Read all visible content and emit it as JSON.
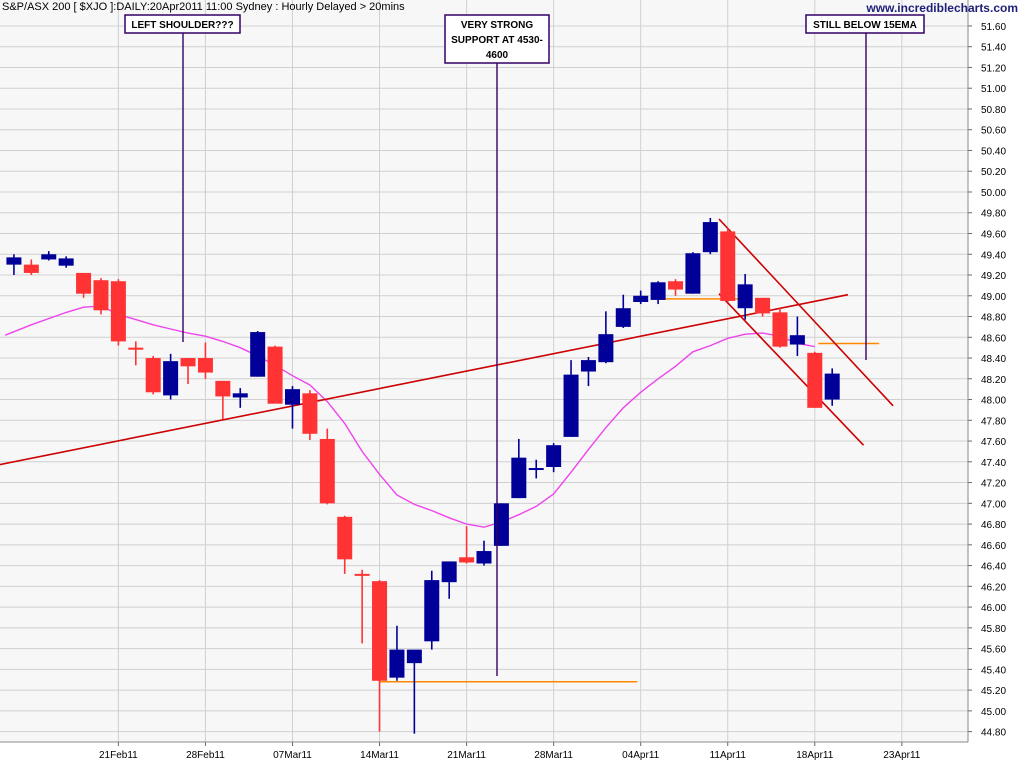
{
  "header": {
    "title": "S&P/ASX 200 [ $XJO ]:DAILY:20Apr2011 11:00 Sydney : Hourly Delayed > 20mins",
    "site": "www.incrediblecharts.com"
  },
  "colors": {
    "up": "#000099",
    "down": "#ff3333",
    "ema": "#ee44ee",
    "trend": "#cc0000",
    "support": "#ff8800",
    "annotation_border": "#330066",
    "grid": "#d0d0d0",
    "plot_bg": "#f7f7f7",
    "axis_bg": "#ffffff"
  },
  "annotations": [
    {
      "id": "left-shoulder",
      "text": [
        "LEFT SHOULDER???"
      ]
    },
    {
      "id": "strong-support",
      "text": [
        "VERY STRONG",
        "SUPPORT AT 4530-",
        "4600"
      ]
    },
    {
      "id": "below-ema",
      "text": [
        "STILL BELOW 15EMA"
      ]
    }
  ],
  "chart_data": {
    "type": "candlestick",
    "title": "S&P/ASX 200 [ $XJO ]:DAILY:20Apr2011 11:00 Sydney : Hourly Delayed > 20mins",
    "xlabel": "",
    "ylabel": "",
    "ylim": [
      44.7,
      51.85
    ],
    "y_ticks": [
      "51.60",
      "51.40",
      "51.20",
      "51.00",
      "50.80",
      "50.60",
      "50.40",
      "50.20",
      "50.00",
      "49.80",
      "49.60",
      "49.40",
      "49.20",
      "49.00",
      "48.80",
      "48.60",
      "48.40",
      "48.20",
      "48.00",
      "47.80",
      "47.60",
      "47.40",
      "47.20",
      "47.00",
      "46.80",
      "46.60",
      "46.40",
      "46.20",
      "46.00",
      "45.80",
      "45.60",
      "45.40",
      "45.20",
      "45.00",
      "44.80"
    ],
    "x_ticks": [
      {
        "label": "21Feb11",
        "index": 8
      },
      {
        "label": "28Feb11",
        "index": 13
      },
      {
        "label": "07Mar11",
        "index": 18
      },
      {
        "label": "14Mar11",
        "index": 23
      },
      {
        "label": "21Mar11",
        "index": 28
      },
      {
        "label": "28Mar11",
        "index": 33
      },
      {
        "label": "04Apr11",
        "index": 38
      },
      {
        "label": "11Apr11",
        "index": 43
      },
      {
        "label": "18Apr11",
        "index": 48
      },
      {
        "label": "23Apr11",
        "index": 53
      }
    ],
    "index_range": [
      1.2,
      56.8
    ],
    "grid": true,
    "candles": [
      {
        "i": 2,
        "o": 49.3,
        "h": 49.4,
        "l": 49.2,
        "c": 49.37
      },
      {
        "i": 3,
        "o": 49.3,
        "h": 49.35,
        "l": 49.2,
        "c": 49.22
      },
      {
        "i": 4,
        "o": 49.35,
        "h": 49.43,
        "l": 49.34,
        "c": 49.4
      },
      {
        "i": 5,
        "o": 49.29,
        "h": 49.38,
        "l": 49.27,
        "c": 49.36
      },
      {
        "i": 6,
        "o": 49.22,
        "h": 49.22,
        "l": 48.98,
        "c": 49.02
      },
      {
        "i": 7,
        "o": 49.15,
        "h": 49.17,
        "l": 48.82,
        "c": 48.86
      },
      {
        "i": 8,
        "o": 49.14,
        "h": 49.16,
        "l": 48.52,
        "c": 48.56
      },
      {
        "i": 9,
        "o": 48.5,
        "h": 48.56,
        "l": 48.33,
        "c": 48.48
      },
      {
        "i": 10,
        "o": 48.4,
        "h": 48.42,
        "l": 48.05,
        "c": 48.07
      },
      {
        "i": 11,
        "o": 48.04,
        "h": 48.44,
        "l": 48.0,
        "c": 48.37
      },
      {
        "i": 12,
        "o": 48.4,
        "h": 48.4,
        "l": 48.15,
        "c": 48.32
      },
      {
        "i": 13,
        "o": 48.4,
        "h": 48.55,
        "l": 48.2,
        "c": 48.26
      },
      {
        "i": 14,
        "o": 48.18,
        "h": 48.18,
        "l": 47.81,
        "c": 48.03
      },
      {
        "i": 15,
        "o": 48.02,
        "h": 48.11,
        "l": 47.92,
        "c": 48.06
      },
      {
        "i": 16,
        "o": 48.22,
        "h": 48.66,
        "l": 48.22,
        "c": 48.65
      },
      {
        "i": 17,
        "o": 48.51,
        "h": 48.52,
        "l": 47.97,
        "c": 47.96
      },
      {
        "i": 18,
        "o": 47.95,
        "h": 48.13,
        "l": 47.72,
        "c": 48.1
      },
      {
        "i": 19,
        "o": 48.06,
        "h": 48.09,
        "l": 47.61,
        "c": 47.67
      },
      {
        "i": 20,
        "o": 47.62,
        "h": 47.72,
        "l": 46.99,
        "c": 47.0
      },
      {
        "i": 21,
        "o": 46.87,
        "h": 46.88,
        "l": 46.32,
        "c": 46.46
      },
      {
        "i": 22,
        "o": 46.32,
        "h": 46.36,
        "l": 45.65,
        "c": 46.31
      },
      {
        "i": 23,
        "o": 46.25,
        "h": 46.26,
        "l": 44.8,
        "c": 45.29
      },
      {
        "i": 24,
        "o": 45.32,
        "h": 45.82,
        "l": 45.29,
        "c": 45.59
      },
      {
        "i": 25,
        "o": 45.46,
        "h": 45.58,
        "l": 44.78,
        "c": 45.59
      },
      {
        "i": 26,
        "o": 45.67,
        "h": 46.35,
        "l": 45.59,
        "c": 46.26
      },
      {
        "i": 27,
        "o": 46.24,
        "h": 46.44,
        "l": 46.08,
        "c": 46.44
      },
      {
        "i": 28,
        "o": 46.48,
        "h": 46.78,
        "l": 46.42,
        "c": 46.43
      },
      {
        "i": 29,
        "o": 46.42,
        "h": 46.64,
        "l": 46.4,
        "c": 46.54
      },
      {
        "i": 30,
        "o": 46.59,
        "h": 47.0,
        "l": 46.59,
        "c": 47.0
      },
      {
        "i": 31,
        "o": 47.05,
        "h": 47.62,
        "l": 47.05,
        "c": 47.44
      },
      {
        "i": 32,
        "o": 47.34,
        "h": 47.42,
        "l": 47.24,
        "c": 47.34
      },
      {
        "i": 33,
        "o": 47.35,
        "h": 47.58,
        "l": 47.3,
        "c": 47.56
      },
      {
        "i": 34,
        "o": 47.64,
        "h": 48.38,
        "l": 47.64,
        "c": 48.24
      },
      {
        "i": 35,
        "o": 48.27,
        "h": 48.41,
        "l": 48.13,
        "c": 48.38
      },
      {
        "i": 36,
        "o": 48.36,
        "h": 48.85,
        "l": 48.35,
        "c": 48.63
      },
      {
        "i": 37,
        "o": 48.7,
        "h": 49.01,
        "l": 48.69,
        "c": 48.88
      },
      {
        "i": 38,
        "o": 48.94,
        "h": 49.05,
        "l": 48.92,
        "c": 49.0
      },
      {
        "i": 39,
        "o": 48.96,
        "h": 49.14,
        "l": 48.92,
        "c": 49.13
      },
      {
        "i": 40,
        "o": 49.14,
        "h": 49.16,
        "l": 49.0,
        "c": 49.06
      },
      {
        "i": 41,
        "o": 49.02,
        "h": 49.42,
        "l": 49.02,
        "c": 49.41
      },
      {
        "i": 42,
        "o": 49.42,
        "h": 49.75,
        "l": 49.4,
        "c": 49.71
      },
      {
        "i": 43,
        "o": 49.62,
        "h": 49.65,
        "l": 48.94,
        "c": 48.95
      },
      {
        "i": 44,
        "o": 48.88,
        "h": 49.21,
        "l": 48.77,
        "c": 49.11
      },
      {
        "i": 45,
        "o": 48.98,
        "h": 48.98,
        "l": 48.8,
        "c": 48.83
      },
      {
        "i": 46,
        "o": 48.84,
        "h": 48.88,
        "l": 48.5,
        "c": 48.51
      },
      {
        "i": 47,
        "o": 48.53,
        "h": 48.8,
        "l": 48.42,
        "c": 48.62
      },
      {
        "i": 48,
        "o": 48.45,
        "h": 48.46,
        "l": 47.92,
        "c": 47.92
      },
      {
        "i": 49,
        "o": 48.0,
        "h": 48.3,
        "l": 47.94,
        "c": 48.25
      }
    ],
    "series": [
      {
        "type": "line",
        "points": [
          [
            1.5,
            48.62
          ],
          [
            3,
            48.72
          ],
          [
            5,
            48.84
          ],
          [
            6,
            48.89
          ],
          [
            7,
            48.9
          ],
          [
            8,
            48.82
          ],
          [
            9,
            48.77
          ],
          [
            10,
            48.72
          ],
          [
            11,
            48.68
          ],
          [
            12,
            48.64
          ],
          [
            13,
            48.61
          ],
          [
            14,
            48.56
          ],
          [
            15,
            48.5
          ],
          [
            16,
            48.42
          ],
          [
            17,
            48.33
          ],
          [
            18,
            48.23
          ],
          [
            19,
            48.14
          ],
          [
            20,
            47.98
          ],
          [
            21,
            47.77
          ],
          [
            22,
            47.5
          ],
          [
            23,
            47.28
          ],
          [
            24,
            47.08
          ],
          [
            25,
            46.99
          ],
          [
            26,
            46.93
          ],
          [
            27,
            46.86
          ],
          [
            28,
            46.8
          ],
          [
            29,
            46.77
          ],
          [
            30,
            46.82
          ],
          [
            31,
            46.89
          ],
          [
            32,
            46.97
          ],
          [
            33,
            47.09
          ],
          [
            34,
            47.3
          ],
          [
            35,
            47.52
          ],
          [
            36,
            47.73
          ],
          [
            37,
            47.92
          ],
          [
            38,
            48.07
          ],
          [
            39,
            48.2
          ],
          [
            40,
            48.32
          ],
          [
            41,
            48.46
          ],
          [
            42,
            48.52
          ],
          [
            43,
            48.59
          ],
          [
            44,
            48.63
          ],
          [
            45,
            48.64
          ],
          [
            46,
            48.61
          ],
          [
            47,
            48.54
          ],
          [
            48,
            48.51
          ]
        ]
      },
      {
        "type": "line",
        "points": [
          [
            0.2,
            47.34
          ],
          [
            49.9,
            49.01
          ]
        ]
      },
      {
        "type": "line",
        "points": [
          [
            23.0,
            45.28
          ],
          [
            37.8,
            45.28
          ]
        ]
      },
      {
        "type": "line",
        "points": [
          [
            38.8,
            48.97
          ],
          [
            44.3,
            48.97
          ]
        ]
      },
      {
        "type": "line",
        "points": [
          [
            48.2,
            48.54
          ],
          [
            51.7,
            48.54
          ]
        ]
      },
      {
        "type": "line",
        "points": [
          [
            42.5,
            49.74
          ],
          [
            52.5,
            47.94
          ]
        ]
      },
      {
        "type": "line",
        "points": [
          [
            42.5,
            49.02
          ],
          [
            50.8,
            47.56
          ]
        ]
      }
    ]
  }
}
